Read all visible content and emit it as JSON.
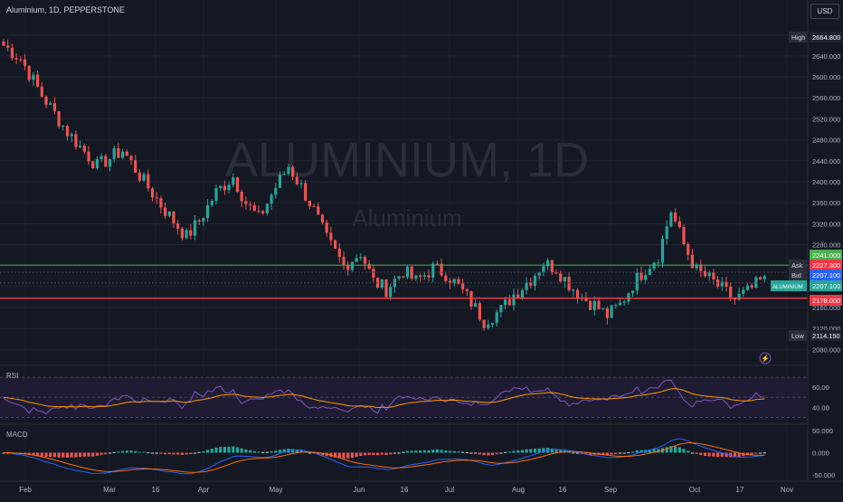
{
  "header": {
    "title": "Aluminium, 1D, PEPPERSTONE",
    "currency": "USD"
  },
  "watermark": {
    "symbol": "ALUMINIUM, 1D",
    "name": "Aluminium"
  },
  "panes": {
    "rsi_label": "RSI",
    "macd_label": "MACD"
  },
  "chart_data": [
    {
      "type": "candlestick",
      "title": "Aluminium, 1D, PEPPERSTONE",
      "y_ticks": [
        2080,
        2120,
        2160,
        2200,
        2240,
        2280,
        2320,
        2360,
        2400,
        2440,
        2480,
        2520,
        2560,
        2600,
        2640,
        2680
      ],
      "y_tick_labels": [
        "2080.000",
        "2120.000",
        "2160.000",
        "2200.000",
        "2240.000",
        "2280.000",
        "2320.000",
        "2360.000",
        "2400.000",
        "2440.000",
        "2480.000",
        "2520.000",
        "2560.000",
        "2600.000",
        "2640.000",
        "2680.000"
      ],
      "ylim": [
        2060,
        2695
      ],
      "x_tick_labels": [
        "Feb",
        "Mar",
        "16",
        "Apr",
        "May",
        "Jun",
        "16",
        "Jul",
        "Aug",
        "16",
        "Sep",
        "Oct",
        "17",
        "Nov"
      ],
      "keypoints": [
        [
          0,
          2660
        ],
        [
          4,
          2635
        ],
        [
          9,
          2565
        ],
        [
          15,
          2495
        ],
        [
          22,
          2430
        ],
        [
          28,
          2460
        ],
        [
          33,
          2400
        ],
        [
          38,
          2345
        ],
        [
          43,
          2295
        ],
        [
          46,
          2325
        ],
        [
          50,
          2380
        ],
        [
          54,
          2410
        ],
        [
          57,
          2360
        ],
        [
          60,
          2330
        ],
        [
          64,
          2390
        ],
        [
          67,
          2430
        ],
        [
          70,
          2390
        ],
        [
          73,
          2345
        ],
        [
          76,
          2290
        ],
        [
          80,
          2240
        ],
        [
          84,
          2265
        ],
        [
          87,
          2210
        ],
        [
          90,
          2195
        ],
        [
          94,
          2230
        ],
        [
          97,
          2210
        ],
        [
          101,
          2235
        ],
        [
          104,
          2225
        ],
        [
          107,
          2200
        ],
        [
          110,
          2170
        ],
        [
          113,
          2135
        ],
        [
          117,
          2155
        ],
        [
          120,
          2185
        ],
        [
          124,
          2215
        ],
        [
          127,
          2245
        ],
        [
          130,
          2235
        ],
        [
          133,
          2205
        ],
        [
          136,
          2180
        ],
        [
          139,
          2165
        ],
        [
          142,
          2145
        ],
        [
          145,
          2165
        ],
        [
          148,
          2205
        ],
        [
          151,
          2235
        ],
        [
          154,
          2260
        ],
        [
          157,
          2345
        ],
        [
          160,
          2280
        ],
        [
          163,
          2230
        ],
        [
          166,
          2215
        ],
        [
          169,
          2195
        ],
        [
          172,
          2175
        ],
        [
          175,
          2190
        ],
        [
          178,
          2210
        ]
      ],
      "lines": [
        {
          "name": "High",
          "value": 2664.8,
          "label": "2664.800"
        },
        {
          "name": "Ask",
          "value": 2227.3,
          "label": "2227.300"
        },
        {
          "name": "Bid",
          "value": 2207.1,
          "label": "2207.100"
        },
        {
          "name": "ALUMINIUM",
          "value": 2207.1,
          "label": "2207.100"
        },
        {
          "name": "",
          "value": 2241.0,
          "label": "2241.000"
        },
        {
          "name": "",
          "value": 2178.0,
          "label": "2178.000"
        },
        {
          "name": "Low",
          "value": 2114.15,
          "label": "2114.150"
        }
      ],
      "colors": {
        "up": "#26a69a",
        "down": "#ef5350",
        "green_line": "#4caf50",
        "red_line": "#f23645"
      }
    },
    {
      "type": "line",
      "title": "RSI",
      "y_tick_labels": [
        "60.00",
        "40.00"
      ],
      "ylim": [
        25,
        80
      ],
      "bands": [
        30,
        50,
        70
      ],
      "series": [
        {
          "name": "",
          "color": "#7e57c2"
        },
        {
          "name": "",
          "color": "#ff9800"
        }
      ]
    },
    {
      "type": "bar",
      "title": "MACD",
      "y_tick_labels": [
        "50.000",
        "0.000",
        "-50.000"
      ],
      "ylim": [
        -60,
        60
      ],
      "series": [
        {
          "name": "",
          "color": "#2962ff"
        },
        {
          "name": "",
          "color": "#ff6d00"
        }
      ]
    }
  ]
}
